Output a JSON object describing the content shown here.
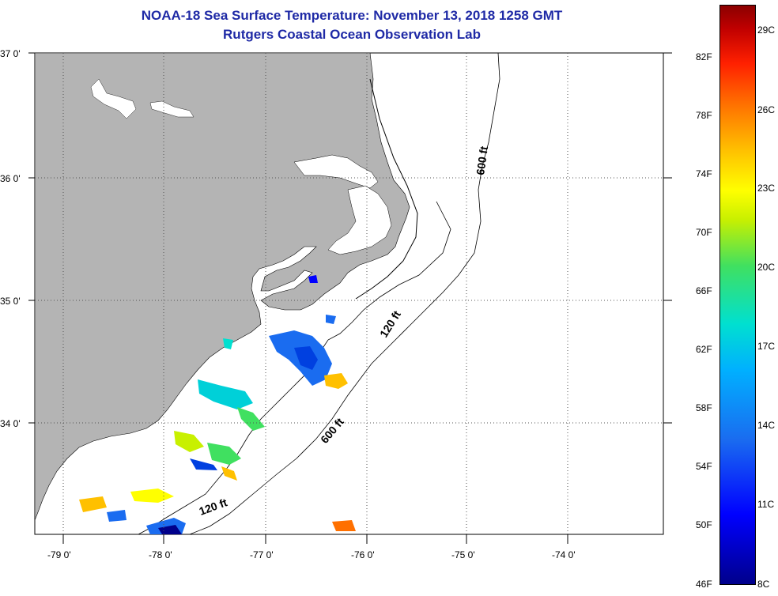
{
  "header": {
    "title_line1": "NOAA-18 Sea Surface Temperature:  November 13, 2018 1258 GMT",
    "title_line2": "Rutgers Coastal Ocean Observation Lab"
  },
  "map": {
    "lat_labels": [
      "37 0'",
      "36 0'",
      "35 0'",
      "34 0'"
    ],
    "lon_labels": [
      "-79 0'",
      "-78 0'",
      "-77 0'",
      "-76 0'",
      "-75 0'",
      "-74 0'"
    ],
    "contour_labels": [
      "600 ft",
      "120 ft",
      "600 ft",
      "120 ft"
    ],
    "colors": {
      "land": "#b4b4b4",
      "ocean": "#ffffff",
      "grid": "#000000"
    }
  },
  "colorbar": {
    "fahrenheit": [
      "82F",
      "78F",
      "74F",
      "70F",
      "66F",
      "62F",
      "58F",
      "54F",
      "50F",
      "46F"
    ],
    "celsius": [
      "29C",
      "26C",
      "23C",
      "20C",
      "17C",
      "14C",
      "11C",
      "8C"
    ],
    "colors": [
      "#00008b",
      "#0000ff",
      "#1a6cf0",
      "#00b0ff",
      "#00e0d0",
      "#40e060",
      "#c8f000",
      "#ffff00",
      "#ffc000",
      "#ff7000",
      "#ff2000",
      "#8b0000"
    ]
  }
}
